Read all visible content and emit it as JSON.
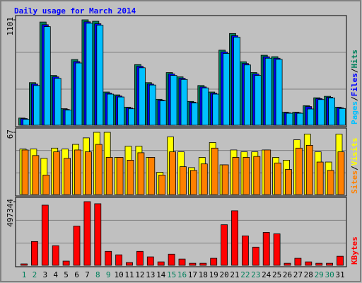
{
  "title": "Daily usage for March 2014",
  "chart_data": [
    {
      "type": "bar",
      "ylim": [
        0,
        1101
      ],
      "yticks": [
        1101
      ],
      "legend_separator": "/",
      "series": [
        {
          "name": "Hits",
          "color": "#00805c",
          "values": [
            75,
            445,
            1078,
            520,
            173,
            686,
            1101,
            1086,
            347,
            317,
            189,
            633,
            445,
            271,
            550,
            505,
            249,
            415,
            347,
            784,
            958,
            663,
            550,
            731,
            716,
            136,
            136,
            204,
            287,
            302,
            189
          ]
        },
        {
          "name": "Files",
          "color": "#0000ff",
          "values": [
            70,
            430,
            1050,
            505,
            165,
            665,
            1080,
            1060,
            335,
            305,
            180,
            615,
            430,
            262,
            535,
            490,
            240,
            400,
            335,
            765,
            935,
            645,
            535,
            715,
            700,
            130,
            130,
            195,
            278,
            292,
            182
          ]
        },
        {
          "name": "Pages",
          "color": "#00c0ff",
          "values": [
            62,
            415,
            1030,
            490,
            158,
            650,
            1065,
            1045,
            325,
            295,
            172,
            600,
            420,
            255,
            520,
            478,
            232,
            390,
            325,
            750,
            920,
            630,
            520,
            700,
            688,
            125,
            125,
            170,
            268,
            285,
            175
          ]
        }
      ]
    },
    {
      "type": "bar",
      "ylim": [
        0,
        67
      ],
      "yticks": [
        67
      ],
      "legend_separator": "/",
      "series": [
        {
          "name": "Visits",
          "color": "#ffff00",
          "values": [
            49,
            49,
            39,
            50,
            49,
            54,
            61,
            67,
            67,
            40,
            52,
            52,
            40,
            24,
            62,
            46,
            29,
            40,
            56,
            32,
            48,
            46,
            46,
            48,
            40,
            37,
            59,
            65,
            46,
            35,
            65
          ]
        },
        {
          "name": "Sites",
          "color": "#ff8000",
          "values": [
            48,
            42,
            21,
            46,
            39,
            48,
            46,
            54,
            40,
            40,
            37,
            45,
            40,
            21,
            46,
            30,
            26,
            33,
            50,
            32,
            40,
            40,
            41,
            48,
            34,
            27,
            50,
            53,
            35,
            26,
            46
          ]
        }
      ]
    },
    {
      "type": "bar",
      "ylim": [
        0,
        497344
      ],
      "yticks": [
        497344
      ],
      "categories": [
        "1",
        "2",
        "3",
        "4",
        "5",
        "6",
        "7",
        "8",
        "9",
        "10",
        "11",
        "12",
        "13",
        "14",
        "15",
        "16",
        "17",
        "18",
        "19",
        "20",
        "21",
        "22",
        "23",
        "24",
        "25",
        "26",
        "27",
        "28",
        "29",
        "30",
        "31"
      ],
      "category_colors": [
        "#00805c",
        "#00805c",
        "#000000",
        "#000000",
        "#000000",
        "#000000",
        "#000000",
        "#00805c",
        "#00805c",
        "#000000",
        "#000000",
        "#000000",
        "#000000",
        "#000000",
        "#00805c",
        "#00805c",
        "#000000",
        "#000000",
        "#000000",
        "#000000",
        "#000000",
        "#00805c",
        "#00805c",
        "#000000",
        "#000000",
        "#000000",
        "#000000",
        "#000000",
        "#00805c",
        "#00805c",
        "#000000"
      ],
      "series": [
        {
          "name": "KBytes",
          "color": "#ff0000",
          "values": [
            11000,
            186000,
            470000,
            153000,
            33000,
            306000,
            497344,
            481000,
            109000,
            82000,
            22000,
            109000,
            66000,
            27000,
            87000,
            49000,
            16000,
            16000,
            55000,
            317000,
            426000,
            230000,
            142000,
            257000,
            246000,
            16000,
            55000,
            27000,
            16000,
            16000,
            71000
          ]
        }
      ]
    }
  ]
}
